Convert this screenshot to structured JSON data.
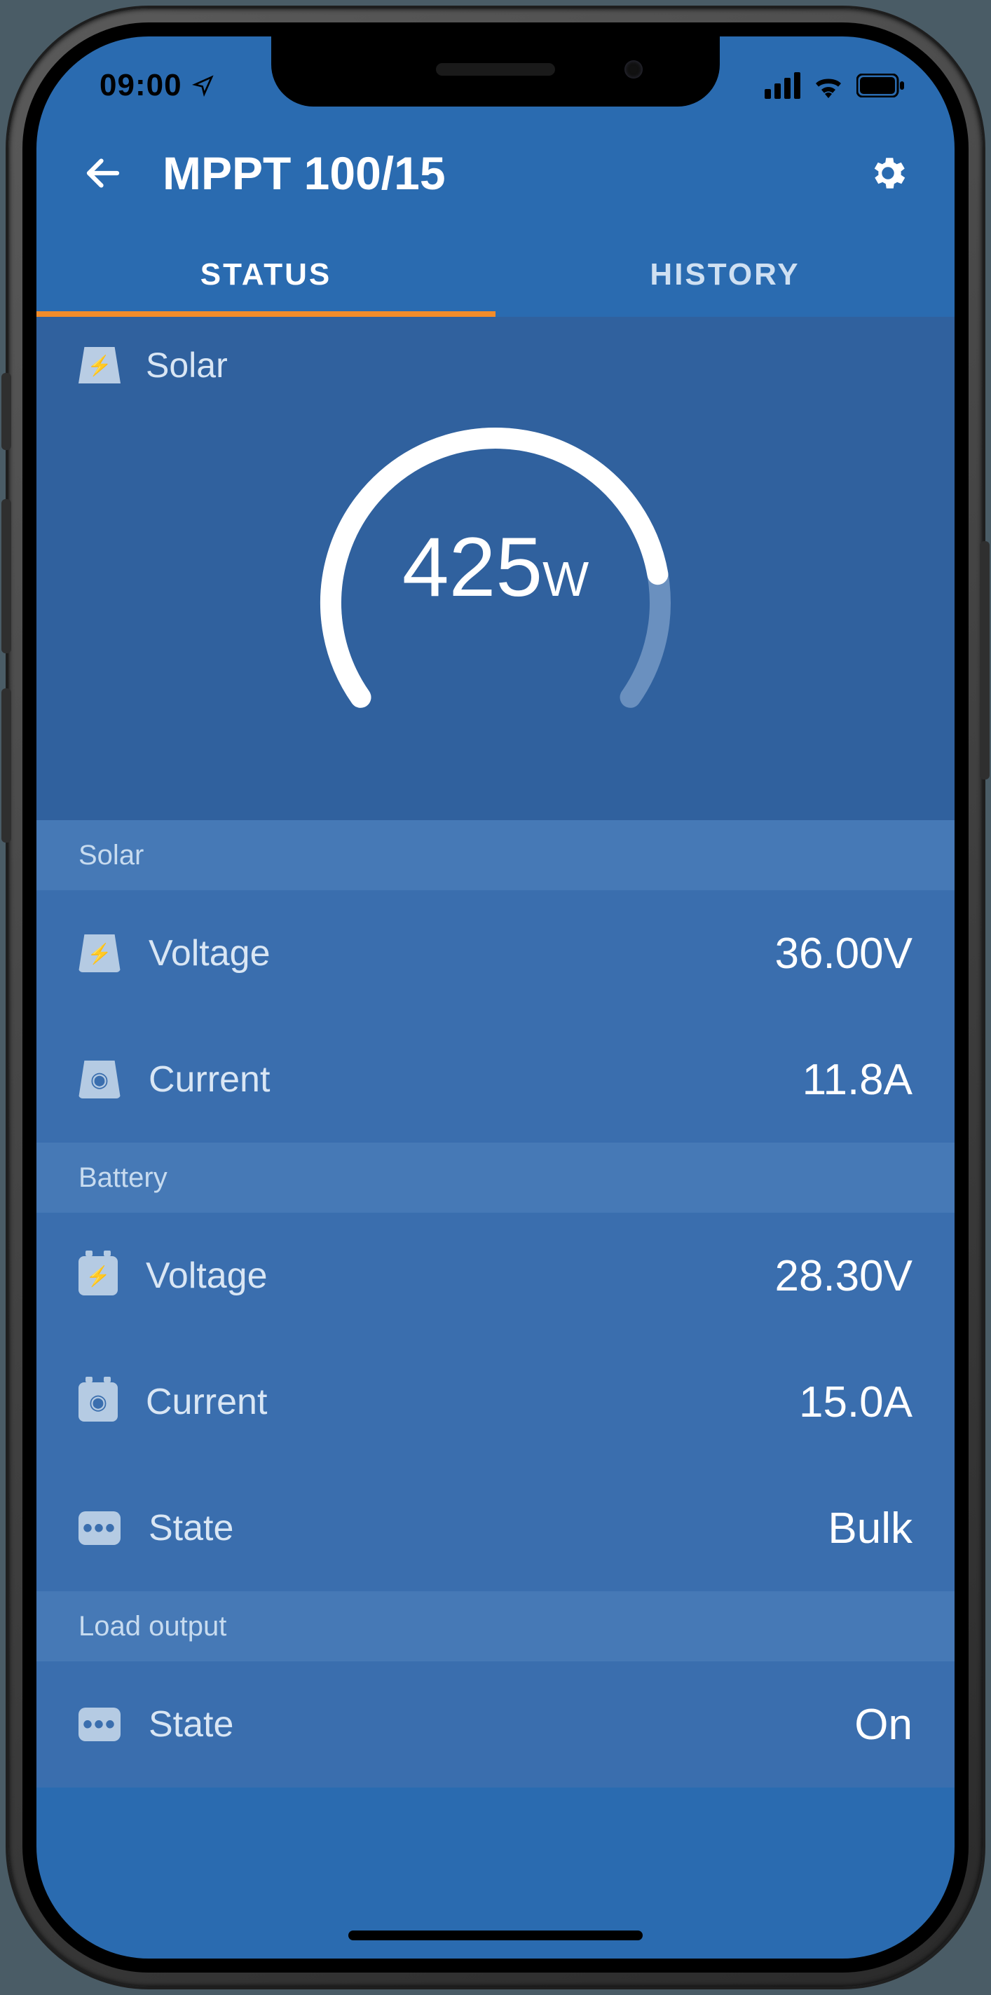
{
  "statusbar": {
    "time": "09:00"
  },
  "header": {
    "title": "MPPT 100/15"
  },
  "tabs": {
    "status": "STATUS",
    "history": "HISTORY",
    "active": "status"
  },
  "gauge": {
    "section_label": "Solar",
    "value": "425",
    "unit": "W",
    "fill_percent": 82,
    "track_color": "#6a90bf",
    "fill_color": "#ffffff",
    "stroke_width": 30
  },
  "sections": {
    "solar": {
      "header": "Solar",
      "voltage_label": "Voltage",
      "voltage_value": "36.00V",
      "current_label": "Current",
      "current_value": "11.8A"
    },
    "battery": {
      "header": "Battery",
      "voltage_label": "Voltage",
      "voltage_value": "28.30V",
      "current_label": "Current",
      "current_value": "15.0A",
      "state_label": "State",
      "state_value": "Bulk"
    },
    "load": {
      "header": "Load output",
      "state_label": "State",
      "state_value": "On"
    }
  },
  "colors": {
    "app_bg": "#2a6bb0",
    "card_bg": "#30619e",
    "row_bg": "#3a6eae",
    "section_head_bg": "#4679b6",
    "tab_underline": "#f28c2a",
    "icon_bg": "#b5cbe3"
  }
}
